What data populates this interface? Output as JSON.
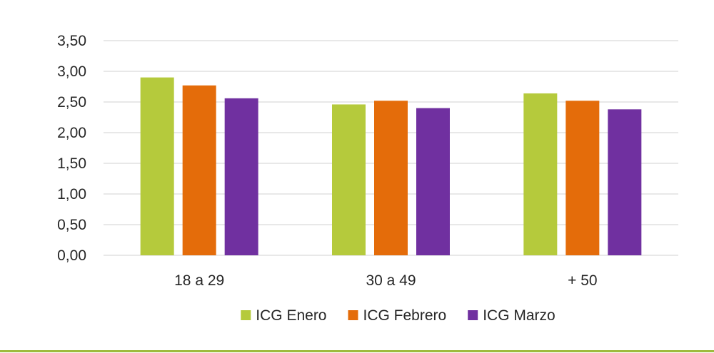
{
  "chart_data": {
    "type": "bar",
    "title": "",
    "xlabel": "",
    "ylabel": "",
    "categories": [
      "18 a 29",
      "30 a 49",
      "+ 50"
    ],
    "series": [
      {
        "name": "ICG Enero",
        "color": "#b5ca3c",
        "values": [
          2.9,
          2.46,
          2.64
        ]
      },
      {
        "name": "ICG Febrero",
        "color": "#e46c0a",
        "values": [
          2.77,
          2.52,
          2.52
        ]
      },
      {
        "name": "ICG Marzo",
        "color": "#7030a0",
        "values": [
          2.56,
          2.4,
          2.38
        ]
      }
    ],
    "ylim": [
      0,
      3.5
    ],
    "yticks": [
      "0,00",
      "0,50",
      "1,00",
      "1,50",
      "2,00",
      "2,50",
      "3,00",
      "3,50"
    ],
    "grid": true,
    "legend_position": "bottom",
    "gridline_color": "#d9d9d9",
    "footer_rule_color": "#9dbb3d"
  }
}
